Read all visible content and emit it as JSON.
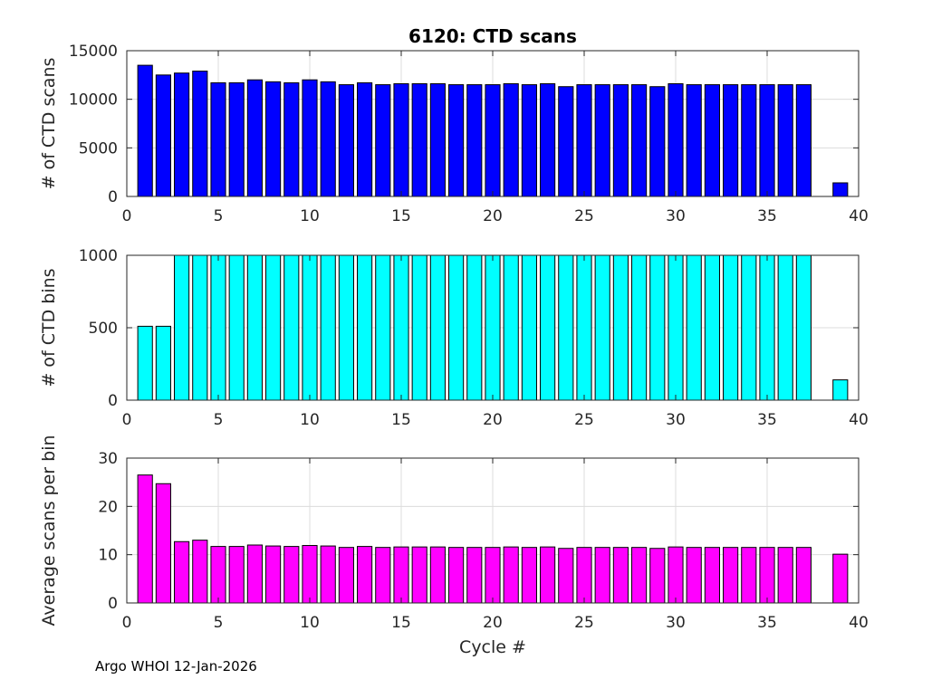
{
  "footer": "Argo WHOI 12-Jan-2026",
  "chart_data": [
    {
      "type": "bar",
      "title": "6120: CTD scans",
      "xlabel": "",
      "ylabel": "# of CTD scans",
      "color": "#0000ff",
      "xlim": [
        0,
        40
      ],
      "ylim": [
        0,
        15000
      ],
      "xticks": [
        0,
        5,
        10,
        15,
        20,
        25,
        30,
        35,
        40
      ],
      "yticks": [
        0,
        5000,
        10000,
        15000
      ],
      "grid": true,
      "x": [
        1,
        2,
        3,
        4,
        5,
        6,
        7,
        8,
        9,
        10,
        11,
        12,
        13,
        14,
        15,
        16,
        17,
        18,
        19,
        20,
        21,
        22,
        23,
        24,
        25,
        26,
        27,
        28,
        29,
        30,
        31,
        32,
        33,
        34,
        35,
        36,
        37,
        39
      ],
      "values": [
        13500,
        12500,
        12700,
        12900,
        11700,
        11700,
        12000,
        11800,
        11700,
        12000,
        11800,
        11500,
        11700,
        11500,
        11600,
        11600,
        11600,
        11500,
        11500,
        11500,
        11600,
        11500,
        11600,
        11300,
        11500,
        11500,
        11500,
        11500,
        11300,
        11600,
        11500,
        11500,
        11500,
        11500,
        11500,
        11500,
        11500,
        1400
      ]
    },
    {
      "type": "bar",
      "title": "",
      "xlabel": "",
      "ylabel": "# of CTD bins",
      "color": "#00ffff",
      "xlim": [
        0,
        40
      ],
      "ylim": [
        0,
        1000
      ],
      "xticks": [
        0,
        5,
        10,
        15,
        20,
        25,
        30,
        35,
        40
      ],
      "yticks": [
        0,
        500,
        1000
      ],
      "grid": true,
      "x": [
        1,
        2,
        3,
        4,
        5,
        6,
        7,
        8,
        9,
        10,
        11,
        12,
        13,
        14,
        15,
        16,
        17,
        18,
        19,
        20,
        21,
        22,
        23,
        24,
        25,
        26,
        27,
        28,
        29,
        30,
        31,
        32,
        33,
        34,
        35,
        36,
        37,
        39
      ],
      "values": [
        510,
        510,
        1000,
        1000,
        1000,
        1000,
        1000,
        1000,
        1000,
        1000,
        1000,
        1000,
        1000,
        1000,
        1000,
        1000,
        1000,
        1000,
        1000,
        1000,
        1000,
        1000,
        1000,
        1000,
        1000,
        1000,
        1000,
        1000,
        1000,
        1000,
        1000,
        1000,
        1000,
        1000,
        1000,
        1000,
        1000,
        140
      ]
    },
    {
      "type": "bar",
      "title": "",
      "xlabel": "Cycle #",
      "ylabel": "Average scans per bin",
      "color": "#ff00ff",
      "xlim": [
        0,
        40
      ],
      "ylim": [
        0,
        30
      ],
      "xticks": [
        0,
        5,
        10,
        15,
        20,
        25,
        30,
        35,
        40
      ],
      "yticks": [
        0,
        10,
        20,
        30
      ],
      "grid": true,
      "x": [
        1,
        2,
        3,
        4,
        5,
        6,
        7,
        8,
        9,
        10,
        11,
        12,
        13,
        14,
        15,
        16,
        17,
        18,
        19,
        20,
        21,
        22,
        23,
        24,
        25,
        26,
        27,
        28,
        29,
        30,
        31,
        32,
        33,
        34,
        35,
        36,
        37,
        39
      ],
      "values": [
        26.5,
        24.7,
        12.7,
        13.0,
        11.7,
        11.7,
        12.0,
        11.8,
        11.7,
        11.9,
        11.8,
        11.5,
        11.7,
        11.5,
        11.6,
        11.6,
        11.6,
        11.5,
        11.5,
        11.5,
        11.6,
        11.5,
        11.6,
        11.3,
        11.5,
        11.5,
        11.5,
        11.5,
        11.3,
        11.6,
        11.5,
        11.5,
        11.5,
        11.5,
        11.5,
        11.5,
        11.5,
        10.1
      ]
    }
  ]
}
